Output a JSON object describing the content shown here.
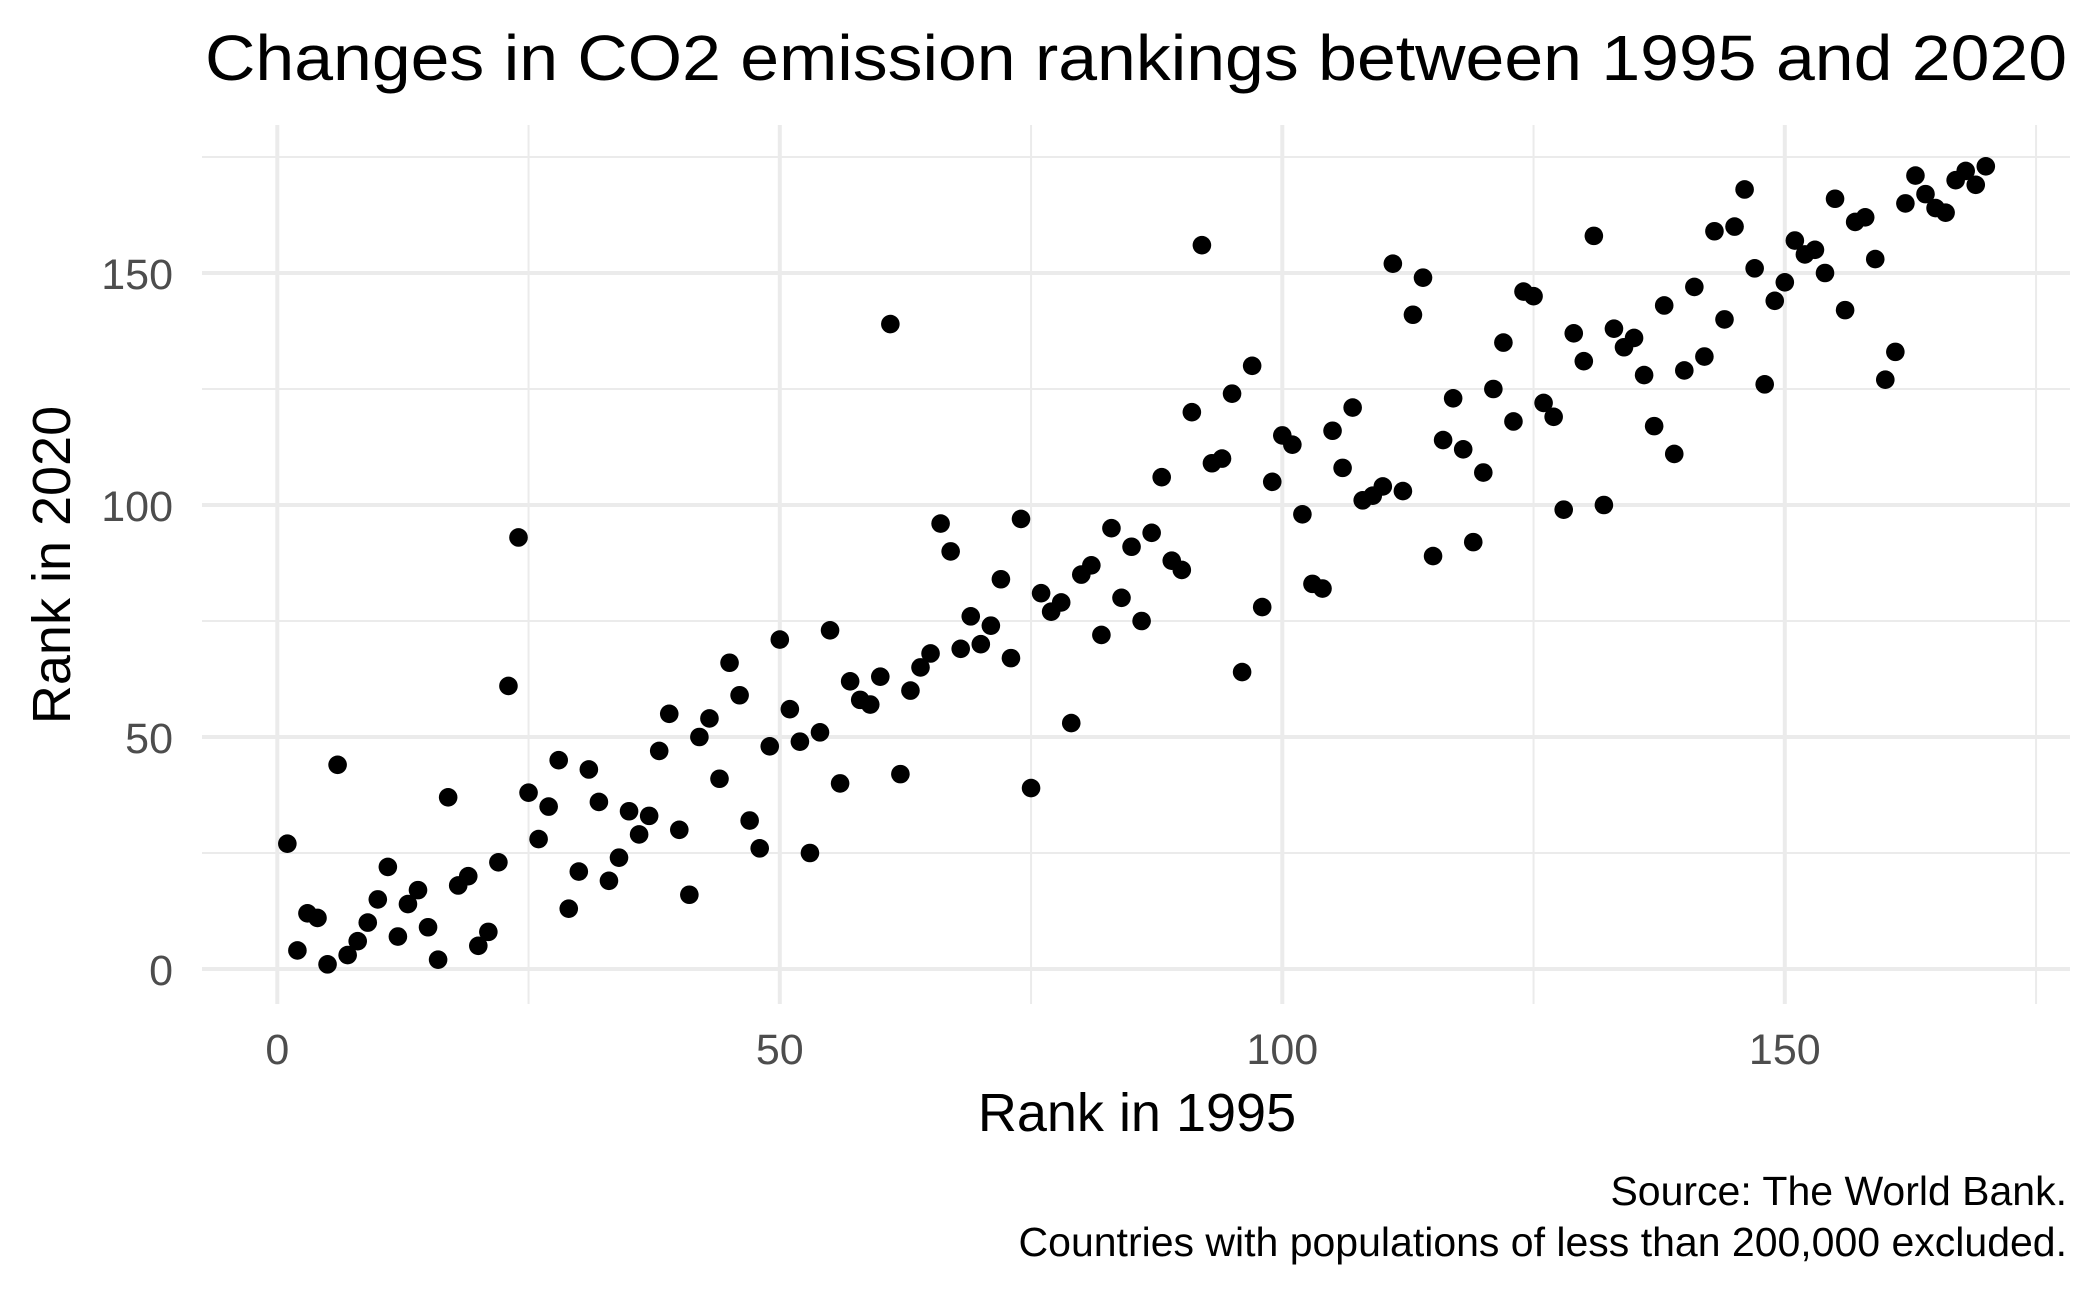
{
  "chart_data": {
    "type": "scatter",
    "title": "Changes in CO2 emission rankings between 1995 and 2020",
    "xlabel": "Rank in 1995",
    "ylabel": "Rank in 2020",
    "caption": [
      "Source: The World Bank.",
      "Countries with populations of less than 200,000 excluded."
    ],
    "xlim": [
      -8,
      178
    ],
    "ylim": [
      -8,
      182
    ],
    "x_ticks": [
      0,
      50,
      100,
      150
    ],
    "x_tick_labels": [
      "0",
      "50",
      "100",
      "150"
    ],
    "x_minor_ticks": [
      25,
      75,
      125,
      175
    ],
    "y_ticks": [
      0,
      50,
      100,
      150
    ],
    "y_tick_labels": [
      "0",
      "50",
      "100",
      "150"
    ],
    "y_minor_ticks": [
      25,
      75,
      125,
      175
    ],
    "grid": true,
    "legend": "none",
    "point_color": "#000000",
    "grid_color": "#ebebeb",
    "points": [
      [
        1,
        27
      ],
      [
        2,
        4
      ],
      [
        3,
        12
      ],
      [
        4,
        11
      ],
      [
        5,
        1
      ],
      [
        6,
        44
      ],
      [
        7,
        3
      ],
      [
        8,
        6
      ],
      [
        9,
        10
      ],
      [
        10,
        15
      ],
      [
        11,
        22
      ],
      [
        12,
        7
      ],
      [
        13,
        14
      ],
      [
        14,
        17
      ],
      [
        15,
        9
      ],
      [
        16,
        2
      ],
      [
        17,
        37
      ],
      [
        18,
        18
      ],
      [
        19,
        20
      ],
      [
        20,
        5
      ],
      [
        21,
        8
      ],
      [
        22,
        23
      ],
      [
        23,
        61
      ],
      [
        24,
        93
      ],
      [
        25,
        38
      ],
      [
        26,
        28
      ],
      [
        27,
        35
      ],
      [
        28,
        45
      ],
      [
        29,
        13
      ],
      [
        30,
        21
      ],
      [
        31,
        43
      ],
      [
        32,
        36
      ],
      [
        33,
        19
      ],
      [
        34,
        24
      ],
      [
        35,
        34
      ],
      [
        36,
        29
      ],
      [
        37,
        33
      ],
      [
        38,
        47
      ],
      [
        39,
        55
      ],
      [
        40,
        30
      ],
      [
        41,
        16
      ],
      [
        42,
        50
      ],
      [
        43,
        54
      ],
      [
        44,
        41
      ],
      [
        45,
        66
      ],
      [
        46,
        59
      ],
      [
        47,
        32
      ],
      [
        48,
        26
      ],
      [
        49,
        48
      ],
      [
        50,
        71
      ],
      [
        51,
        56
      ],
      [
        52,
        49
      ],
      [
        53,
        25
      ],
      [
        54,
        51
      ],
      [
        55,
        73
      ],
      [
        56,
        40
      ],
      [
        57,
        62
      ],
      [
        58,
        58
      ],
      [
        59,
        57
      ],
      [
        60,
        63
      ],
      [
        61,
        139
      ],
      [
        62,
        42
      ],
      [
        63,
        60
      ],
      [
        64,
        65
      ],
      [
        65,
        68
      ],
      [
        66,
        96
      ],
      [
        67,
        90
      ],
      [
        68,
        69
      ],
      [
        69,
        76
      ],
      [
        70,
        70
      ],
      [
        71,
        74
      ],
      [
        72,
        84
      ],
      [
        73,
        67
      ],
      [
        74,
        97
      ],
      [
        75,
        39
      ],
      [
        76,
        81
      ],
      [
        77,
        77
      ],
      [
        78,
        79
      ],
      [
        79,
        53
      ],
      [
        80,
        85
      ],
      [
        81,
        87
      ],
      [
        82,
        72
      ],
      [
        83,
        95
      ],
      [
        84,
        80
      ],
      [
        85,
        91
      ],
      [
        86,
        75
      ],
      [
        87,
        94
      ],
      [
        88,
        106
      ],
      [
        89,
        88
      ],
      [
        90,
        86
      ],
      [
        91,
        120
      ],
      [
        92,
        156
      ],
      [
        93,
        109
      ],
      [
        94,
        110
      ],
      [
        95,
        124
      ],
      [
        96,
        64
      ],
      [
        97,
        130
      ],
      [
        98,
        78
      ],
      [
        99,
        105
      ],
      [
        100,
        115
      ],
      [
        101,
        113
      ],
      [
        102,
        98
      ],
      [
        103,
        83
      ],
      [
        104,
        82
      ],
      [
        105,
        116
      ],
      [
        106,
        108
      ],
      [
        107,
        121
      ],
      [
        108,
        101
      ],
      [
        109,
        102
      ],
      [
        110,
        104
      ],
      [
        111,
        152
      ],
      [
        112,
        103
      ],
      [
        113,
        141
      ],
      [
        114,
        149
      ],
      [
        115,
        89
      ],
      [
        116,
        114
      ],
      [
        117,
        123
      ],
      [
        118,
        112
      ],
      [
        119,
        92
      ],
      [
        120,
        107
      ],
      [
        121,
        125
      ],
      [
        122,
        135
      ],
      [
        123,
        118
      ],
      [
        124,
        146
      ],
      [
        125,
        145
      ],
      [
        126,
        122
      ],
      [
        127,
        119
      ],
      [
        128,
        99
      ],
      [
        129,
        137
      ],
      [
        130,
        131
      ],
      [
        131,
        158
      ],
      [
        132,
        100
      ],
      [
        133,
        138
      ],
      [
        134,
        134
      ],
      [
        135,
        136
      ],
      [
        136,
        128
      ],
      [
        137,
        117
      ],
      [
        138,
        143
      ],
      [
        139,
        111
      ],
      [
        140,
        129
      ],
      [
        141,
        147
      ],
      [
        142,
        132
      ],
      [
        143,
        159
      ],
      [
        144,
        140
      ],
      [
        145,
        160
      ],
      [
        146,
        168
      ],
      [
        147,
        151
      ],
      [
        148,
        126
      ],
      [
        149,
        144
      ],
      [
        150,
        148
      ],
      [
        151,
        157
      ],
      [
        152,
        154
      ],
      [
        153,
        155
      ],
      [
        154,
        150
      ],
      [
        155,
        166
      ],
      [
        156,
        142
      ],
      [
        157,
        161
      ],
      [
        158,
        162
      ],
      [
        159,
        153
      ],
      [
        160,
        127
      ],
      [
        161,
        133
      ],
      [
        162,
        165
      ],
      [
        163,
        171
      ],
      [
        164,
        167
      ],
      [
        165,
        164
      ],
      [
        166,
        163
      ],
      [
        167,
        170
      ],
      [
        168,
        172
      ],
      [
        169,
        169
      ],
      [
        170,
        173
      ]
    ]
  }
}
